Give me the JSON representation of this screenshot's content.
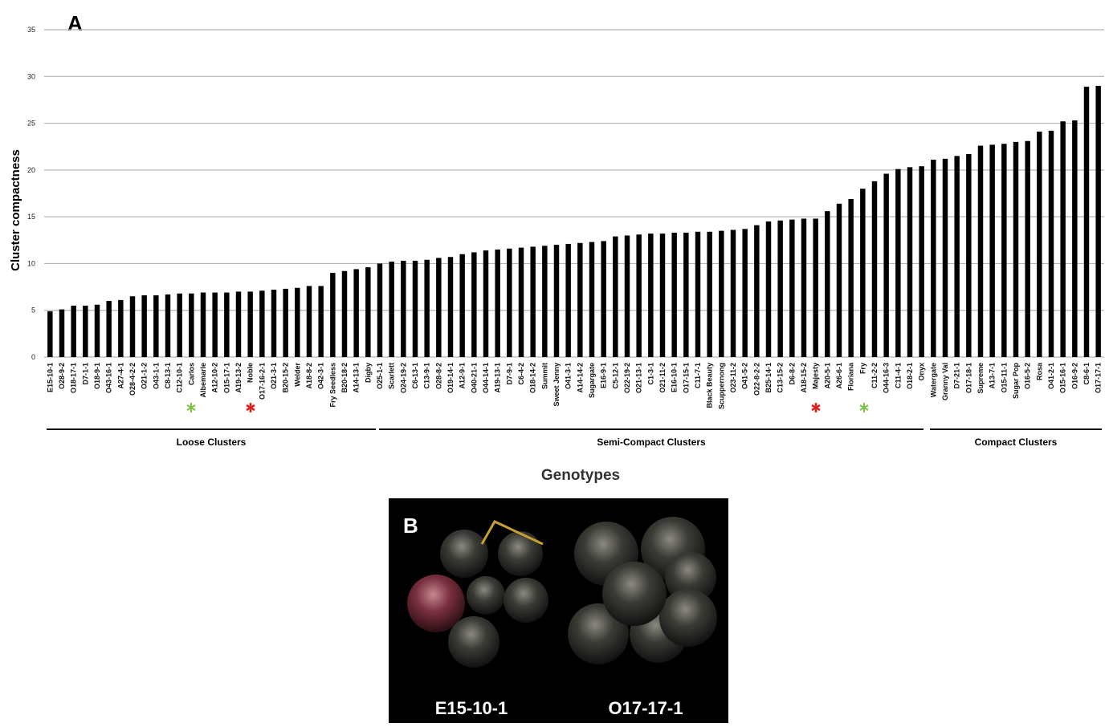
{
  "chart_data": {
    "type": "bar",
    "panel_label": "A",
    "ylabel": "Cluster compactness",
    "xlabel": "Genotypes",
    "categories": [
      "E15-10-1",
      "O28-9-2",
      "O18-17-1",
      "D7-1-1",
      "O18-9-1",
      "O43-16-1",
      "A27-4-1",
      "O28-4-2-2",
      "O21-1-2",
      "O43-1-1",
      "C8-13-1",
      "C12-10-1",
      "Carlos",
      "Albemarle",
      "A12-10-2",
      "O15-17-1",
      "A19-13-2",
      "Noble",
      "O17-16-2-1",
      "O21-3-1",
      "B20-15-2",
      "Welder",
      "A18-8-2",
      "O42-3-1",
      "Fry Seedless",
      "B20-18-2",
      "A14-13-1",
      "Digby",
      "O25-1-1",
      "Scarlett",
      "O24-19-2",
      "C6-13-1",
      "C13-9-1",
      "O28-8-2",
      "O19-14-1",
      "A12-9-1",
      "O40-21-1",
      "O44-14-1",
      "A19-13-1",
      "D7-9-1",
      "C6-4-2",
      "O18-14-2",
      "Summit",
      "Sweet Jenny",
      "O41-3-1",
      "A14-14-2",
      "Sugargate",
      "E16-9-1",
      "C5-12-1",
      "O22-19-2",
      "O21-13-1",
      "C1-3-1",
      "O21-11-2",
      "E16-10-1",
      "O17-15-1",
      "C11-7-1",
      "Black Beauty",
      "Scuppernong",
      "O23-11-2",
      "O41-5-2",
      "O22-8-2-2",
      "B25-14-1",
      "C13-15-2",
      "D6-8-2",
      "A18-15-2",
      "Majesty",
      "A20-5-1",
      "A26-6-1",
      "Floriana",
      "Fry",
      "C11-2-2",
      "O44-16-3",
      "C11-4-1",
      "O18-2-1",
      "Onyx",
      "Watergate",
      "Granny Val",
      "D7-21-1",
      "O17-18-1",
      "Supreme",
      "A13-7-1",
      "O15-11-1",
      "Sugar Pop",
      "O16-5-2",
      "Rosa",
      "O41-2-1",
      "O15-16-1",
      "O16-9-2",
      "C8-6-1",
      "O17-17-1"
    ],
    "values": [
      4.9,
      5.1,
      5.5,
      5.5,
      5.6,
      6.0,
      6.1,
      6.5,
      6.6,
      6.6,
      6.7,
      6.8,
      6.8,
      6.9,
      6.9,
      6.9,
      7.0,
      7.0,
      7.1,
      7.2,
      7.3,
      7.4,
      7.6,
      7.6,
      9.0,
      9.2,
      9.4,
      9.6,
      10.0,
      10.2,
      10.3,
      10.3,
      10.4,
      10.6,
      10.7,
      11.0,
      11.2,
      11.4,
      11.5,
      11.6,
      11.7,
      11.8,
      11.9,
      12.0,
      12.1,
      12.2,
      12.3,
      12.4,
      12.9,
      13.0,
      13.1,
      13.2,
      13.2,
      13.3,
      13.3,
      13.4,
      13.4,
      13.5,
      13.6,
      13.7,
      14.1,
      14.5,
      14.6,
      14.7,
      14.8,
      14.8,
      15.6,
      16.4,
      16.9,
      18.0,
      18.8,
      19.6,
      20.1,
      20.3,
      20.4,
      21.1,
      21.2,
      21.5,
      21.7,
      22.6,
      22.7,
      22.8,
      23.0,
      23.1,
      24.1,
      24.2,
      25.2,
      25.3,
      28.9,
      29.0
    ],
    "color": "#000000",
    "ylim": [
      0,
      35
    ],
    "yticks": [
      0,
      5,
      10,
      15,
      20,
      25,
      30,
      35
    ],
    "grid": true,
    "groups": [
      "Loose Clusters",
      "Semi-Compact Clusters",
      "Compact Clusters"
    ]
  },
  "panel_b": {
    "label": "B",
    "captions": [
      "E15-10-1",
      "O17-17-1"
    ]
  }
}
